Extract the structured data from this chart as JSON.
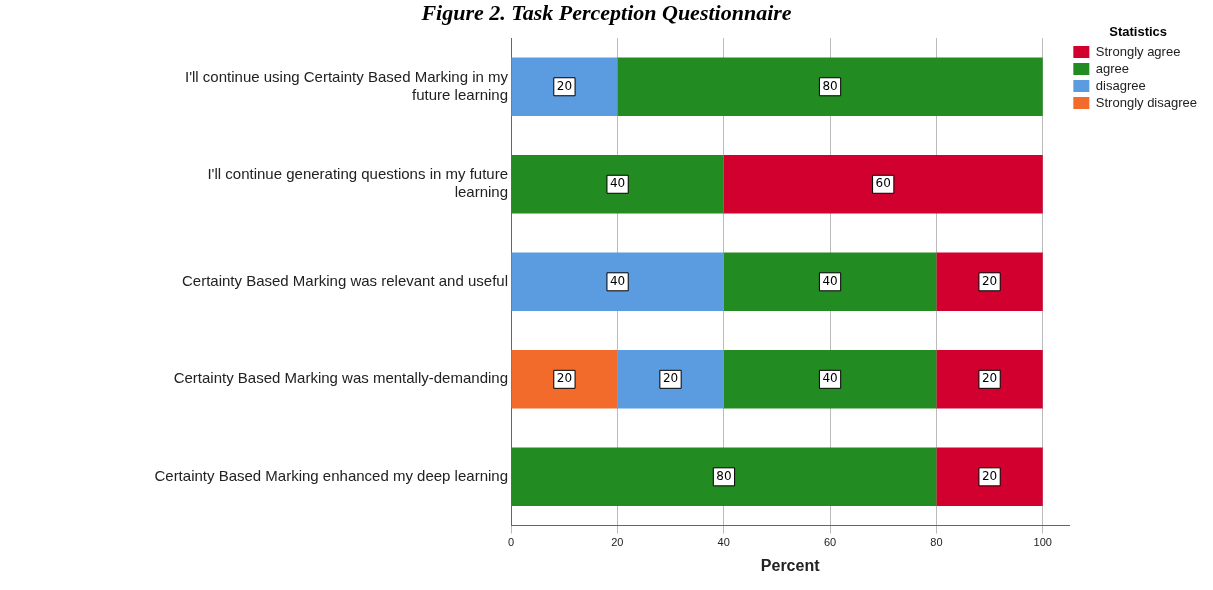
{
  "chart_data": {
    "type": "bar",
    "orientation": "horizontal",
    "stacked": true,
    "title": "Figure 2. Task Perception Questionnaire",
    "xlabel": "Percent",
    "legend_title": "Statistics",
    "legend": "top right",
    "grid": "x",
    "data_labels": true,
    "categories": [
      "I'll continue using Certainty Based Marking in my future learning",
      "I'll continue generating questions in my future learning",
      "Certainty Based Marking was relevant and useful",
      "Certainty Based Marking was mentally-demanding",
      "Certainty Based Marking enhanced my deep learning"
    ],
    "series": [
      {
        "name": "Strongly disagree",
        "color": "#f26b2b",
        "values": [
          null,
          null,
          null,
          20,
          null
        ]
      },
      {
        "name": "disagree",
        "color": "#5b9be0",
        "values": [
          20,
          null,
          40,
          20,
          null
        ]
      },
      {
        "name": "agree",
        "color": "#228b22",
        "values": [
          80,
          40,
          40,
          40,
          80
        ]
      },
      {
        "name": "Strongly agree",
        "color": "#d2002e",
        "values": [
          null,
          60,
          20,
          20,
          20
        ]
      }
    ],
    "xlim": [
      0,
      105
    ],
    "xticks": [
      0,
      20,
      40,
      60,
      80,
      100
    ]
  }
}
